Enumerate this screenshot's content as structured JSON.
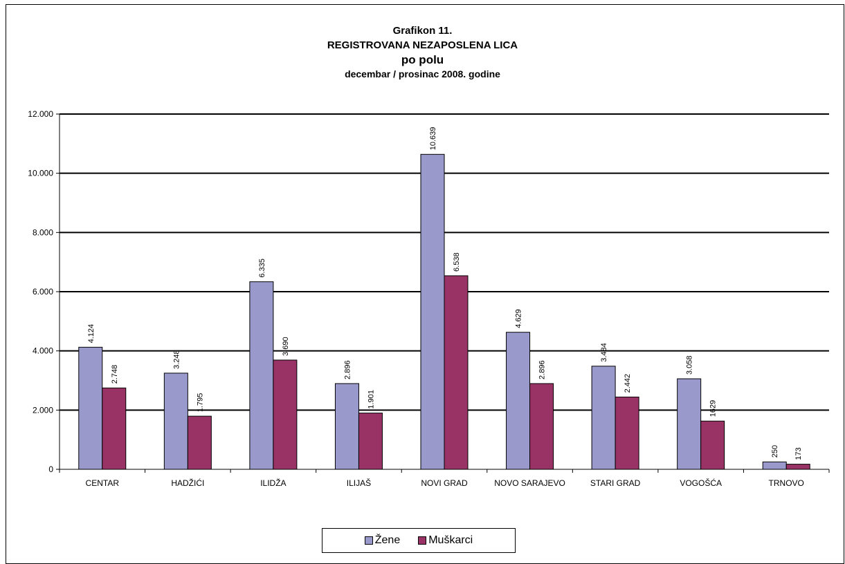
{
  "chart_data": {
    "type": "bar",
    "title_lines": [
      "Grafikon 11.",
      "REGISTROVANA NEZAPOSLENA LICA",
      "po polu",
      "decembar / prosinac  2008. godine"
    ],
    "categories": [
      "CENTAR",
      "HADŽIĆI",
      "ILIDŽA",
      "ILIJAŠ",
      "NOVI GRAD",
      "NOVO SARAJEVO",
      "STARI GRAD",
      "VOGOŠĆA",
      "TRNOVO"
    ],
    "series": [
      {
        "name": "Žene",
        "color": "#9999cc",
        "values": [
          4124,
          3248,
          6335,
          2896,
          10639,
          4629,
          3484,
          3058,
          250
        ],
        "labels": [
          "4.124",
          "3.248",
          "6.335",
          "2.896",
          "10.639",
          "4.629",
          "3.484",
          "3.058",
          "250"
        ]
      },
      {
        "name": "Muškarci",
        "color": "#993366",
        "values": [
          2748,
          1795,
          3690,
          1901,
          6538,
          2896,
          2442,
          1629,
          173
        ],
        "labels": [
          "2.748",
          "1.795",
          "3.690",
          "1.901",
          "6.538",
          "2.896",
          "2.442",
          "1629",
          "173"
        ]
      }
    ],
    "ylim": [
      0,
      12000
    ],
    "yticks": [
      0,
      2000,
      4000,
      6000,
      8000,
      10000,
      12000
    ],
    "ytick_labels": [
      "0",
      "2.000",
      "4.000",
      "6.000",
      "8.000",
      "10.000",
      "12.000"
    ],
    "grid": true,
    "legend_position": "bottom"
  }
}
